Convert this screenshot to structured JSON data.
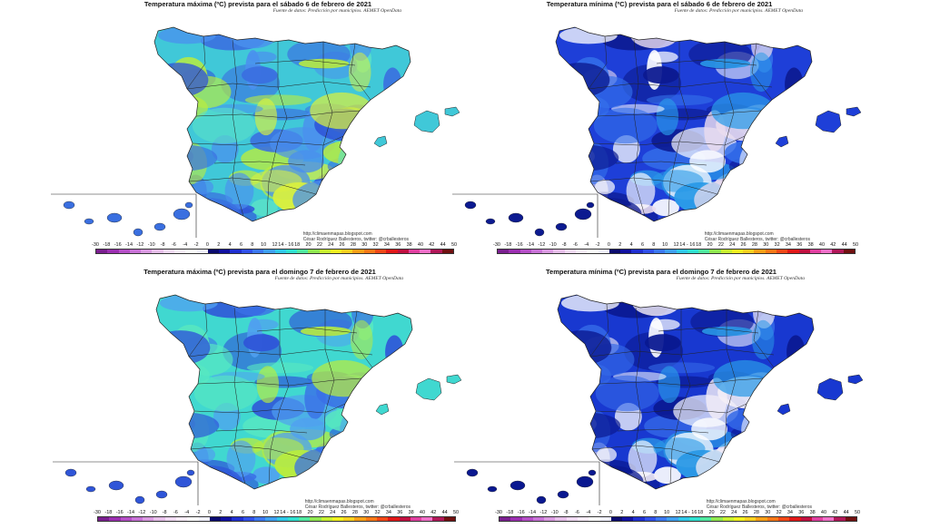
{
  "panels": [
    {
      "id": "tl",
      "title": "Temperatura máxima (ºC) prevista para el sábado 6 de febrero de 2021",
      "source": "Fuente de datos: Predicción por municipios. AEMET OpenData",
      "palette": "max_sat"
    },
    {
      "id": "tr",
      "title": "Temperatura mínima (ºC) prevista para el sábado 6 de febrero de 2021",
      "source": "Fuente de datos: Predicción por municipios. AEMET OpenData",
      "palette": "min_sat"
    },
    {
      "id": "bl",
      "title": "Temperatura máxima (ºC) prevista para el domingo 7 de febrero de 2021",
      "source": "Fuente de datos: Predicción por municipios. AEMET OpenData",
      "palette": "max_sun"
    },
    {
      "id": "br",
      "title": "Temperatura mínima (ºC) prevista para el domingo 7 de febrero de 2021",
      "source": "Fuente de datos: Predicción por municipios. AEMET OpenData",
      "palette": "min_sun"
    }
  ],
  "credit": {
    "url": "http://climaenmapas.blogspot.com",
    "author": "César Rodríguez Ballesteros, twitter: @crballesteros"
  },
  "scale": {
    "labels": [
      "-30",
      "-18",
      "-16",
      "-14",
      "-12",
      "-10",
      "-8",
      "-6",
      "-4",
      "-2",
      "0",
      "2",
      "4",
      "6",
      "8",
      "10",
      "12",
      "14 - 16",
      "18",
      "20",
      "22",
      "24",
      "26",
      "28",
      "30",
      "32",
      "34",
      "36",
      "38",
      "40",
      "42",
      "44",
      "50"
    ],
    "colors": [
      "#7a1f8f",
      "#9b2fb0",
      "#b54fc6",
      "#c873d6",
      "#d99ae0",
      "#e6bfe9",
      "#f0daf2",
      "#f7ecf8",
      "#ffffff",
      "#f0f0ff",
      "#0a0a6e",
      "#1010a0",
      "#1f2fd0",
      "#3050e8",
      "#3c78f0",
      "#3fa0f0",
      "#30c8e8",
      "#30e0d0",
      "#50e8a0",
      "#90e850",
      "#c8f030",
      "#f0f020",
      "#f8d020",
      "#f8a018",
      "#f87818",
      "#f04818",
      "#e01818",
      "#c01040",
      "#e040a0",
      "#f070c8",
      "#b01858",
      "#701010"
    ]
  },
  "palettes": {
    "max_sat": {
      "base": "#40c8d8",
      "patches": [
        "#3a6fe0",
        "#2f55d8",
        "#4a90ee",
        "#58e0c8",
        "#b8ec40",
        "#d8f040"
      ]
    },
    "min_sat": {
      "base": "#1e3fd8",
      "patches": [
        "#0c1a90",
        "#eadcee",
        "#ffffff",
        "#3470ea",
        "#2a9ae8"
      ]
    },
    "max_sun": {
      "base": "#40d8d0",
      "patches": [
        "#2f55d8",
        "#3a70e6",
        "#50a0f0",
        "#58e8c0",
        "#b8ec40"
      ]
    },
    "min_sun": {
      "base": "#1838d0",
      "patches": [
        "#0a1890",
        "#f4eef6",
        "#ffffff",
        "#3468e6",
        "#2a98e6"
      ]
    }
  }
}
